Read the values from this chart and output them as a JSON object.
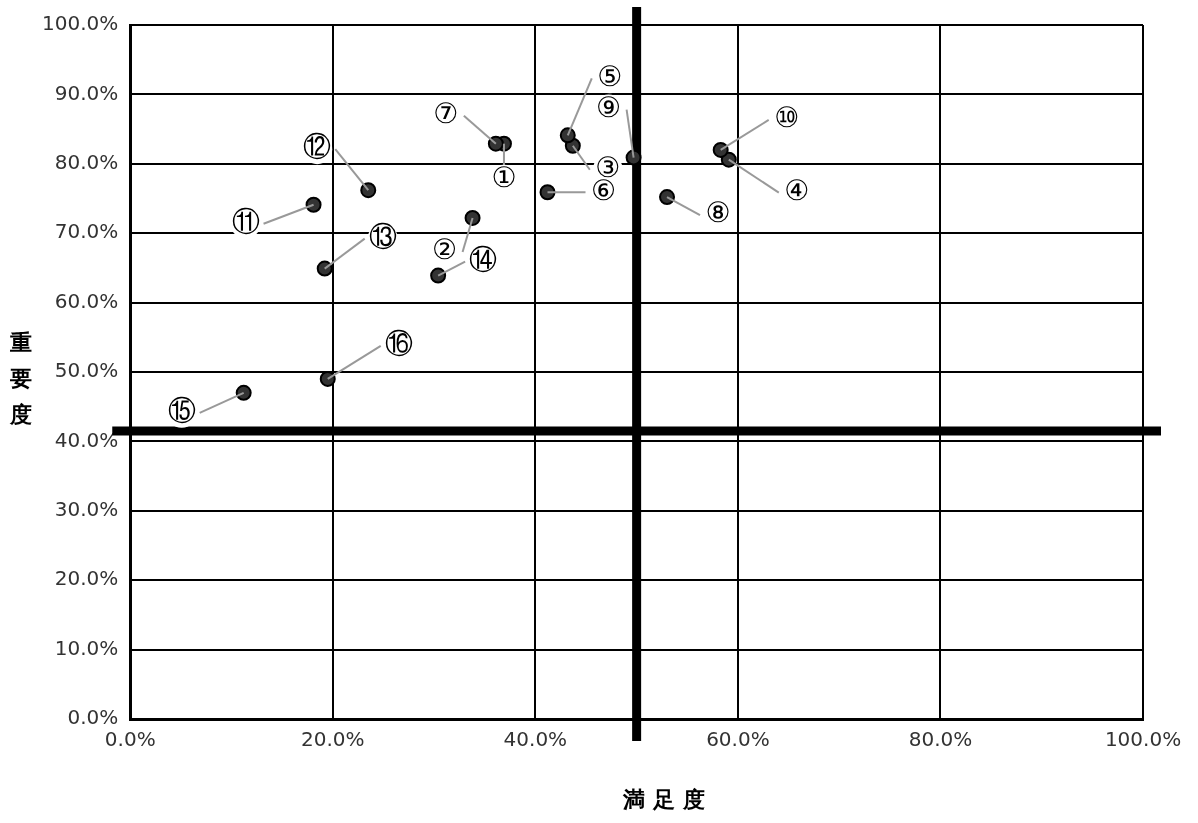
{
  "chart_data": {
    "type": "scatter",
    "xlabel": "満 足 度",
    "ylabel": "重要度",
    "x": [
      36.9,
      33.8,
      43.7,
      59.1,
      43.2,
      41.2,
      36.1,
      53.0,
      49.7,
      58.3,
      18.1,
      23.5,
      19.2,
      30.4,
      11.2,
      19.5
    ],
    "series": [
      {
        "color": "#333333",
        "values": [
          82.9,
          72.2,
          82.6,
          80.6,
          84.1,
          75.9,
          82.9,
          75.2,
          80.9,
          82.0,
          74.1,
          76.2,
          64.9,
          63.9,
          47.0,
          49.0
        ]
      }
    ],
    "marker": "circle",
    "grid": true,
    "legend": false,
    "xlim": [
      0,
      100
    ],
    "ylim": [
      0,
      100
    ],
    "xticks": [
      {
        "value": 0,
        "label": "0.0%"
      },
      {
        "value": 20,
        "label": "20.0%"
      },
      {
        "value": 40,
        "label": "40.0%"
      },
      {
        "value": 60,
        "label": "60.0%"
      },
      {
        "value": 80,
        "label": "80.0%"
      },
      {
        "value": 100,
        "label": "100.0%"
      }
    ],
    "yticks": [
      {
        "value": 0,
        "label": "0.0%"
      },
      {
        "value": 10,
        "label": "10.0%"
      },
      {
        "value": 20,
        "label": "20.0%"
      },
      {
        "value": 30,
        "label": "30.0%"
      },
      {
        "value": 40,
        "label": "40.0%"
      },
      {
        "value": 50,
        "label": "50.0%"
      },
      {
        "value": 60,
        "label": "60.0%"
      },
      {
        "value": 70,
        "label": "70.0%"
      },
      {
        "value": 80,
        "label": "80.0%"
      },
      {
        "value": 90,
        "label": "90.0%"
      },
      {
        "value": 100,
        "label": "100.0%"
      }
    ],
    "ref_lines": [
      {
        "axis": "x",
        "value": 50,
        "color": "#000000"
      },
      {
        "axis": "y",
        "value": 41.5,
        "color": "#000000"
      }
    ],
    "annotations": [
      {
        "text": "①",
        "x": 36.9,
        "y": 82.9
      },
      {
        "text": "②",
        "x": 33.8,
        "y": 72.2
      },
      {
        "text": "③",
        "x": 43.7,
        "y": 82.6
      },
      {
        "text": "④",
        "x": 59.1,
        "y": 80.6
      },
      {
        "text": "⑤",
        "x": 43.2,
        "y": 84.1
      },
      {
        "text": "⑥",
        "x": 41.2,
        "y": 75.9
      },
      {
        "text": "⑦",
        "x": 36.1,
        "y": 82.9
      },
      {
        "text": "⑧",
        "x": 53.0,
        "y": 75.2
      },
      {
        "text": "⑨",
        "x": 49.7,
        "y": 80.9
      },
      {
        "text": "⑩",
        "x": 58.3,
        "y": 82.0
      },
      {
        "text": "⑪",
        "x": 18.1,
        "y": 74.1
      },
      {
        "text": "⑫",
        "x": 23.5,
        "y": 76.2
      },
      {
        "text": "⑬",
        "x": 19.2,
        "y": 64.9
      },
      {
        "text": "⑭",
        "x": 30.4,
        "y": 63.9
      },
      {
        "text": "⑮",
        "x": 11.2,
        "y": 47.0
      },
      {
        "text": "⑯",
        "x": 19.5,
        "y": 49.0
      }
    ]
  }
}
